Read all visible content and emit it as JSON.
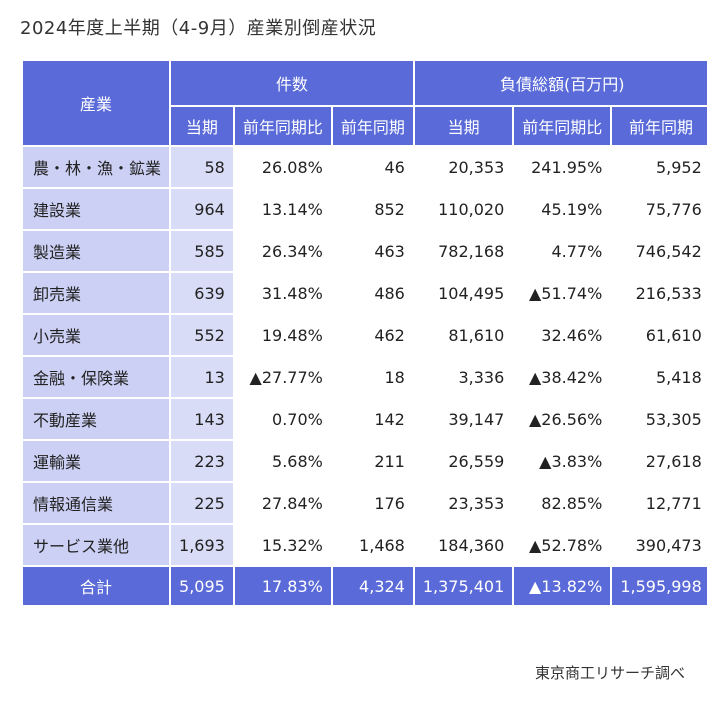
{
  "title": "2024年度上半期（4-9月）産業別倒産状況",
  "source": "東京商工リサーチ調べ",
  "colors": {
    "header": "#5a6ad8",
    "label_cell": "#ccd0f4",
    "current_cell": "#d9dcf6"
  },
  "chart_data": {
    "type": "table",
    "title": "2024年度上半期（4-9月）産業別倒産状況",
    "row_header": "産業",
    "groups": [
      {
        "name": "件数",
        "columns": [
          "当期",
          "前年同期比",
          "前年同期"
        ]
      },
      {
        "name": "負債総額(百万円)",
        "columns": [
          "当期",
          "前年同期比",
          "前年同期"
        ]
      }
    ],
    "rows": [
      {
        "industry": "農・林・漁・鉱業",
        "count_current": "58",
        "count_yoy": "26.08%",
        "count_prev": "46",
        "debt_current": "20,353",
        "debt_yoy": "241.95%",
        "debt_prev": "5,952"
      },
      {
        "industry": "建設業",
        "count_current": "964",
        "count_yoy": "13.14%",
        "count_prev": "852",
        "debt_current": "110,020",
        "debt_yoy": "45.19%",
        "debt_prev": "75,776"
      },
      {
        "industry": "製造業",
        "count_current": "585",
        "count_yoy": "26.34%",
        "count_prev": "463",
        "debt_current": "782,168",
        "debt_yoy": "4.77%",
        "debt_prev": "746,542"
      },
      {
        "industry": "卸売業",
        "count_current": "639",
        "count_yoy": "31.48%",
        "count_prev": "486",
        "debt_current": "104,495",
        "debt_yoy": "▲51.74%",
        "debt_prev": "216,533"
      },
      {
        "industry": "小売業",
        "count_current": "552",
        "count_yoy": "19.48%",
        "count_prev": "462",
        "debt_current": "81,610",
        "debt_yoy": "32.46%",
        "debt_prev": "61,610"
      },
      {
        "industry": "金融・保険業",
        "count_current": "13",
        "count_yoy": "▲27.77%",
        "count_prev": "18",
        "debt_current": "3,336",
        "debt_yoy": "▲38.42%",
        "debt_prev": "5,418"
      },
      {
        "industry": "不動産業",
        "count_current": "143",
        "count_yoy": "0.70%",
        "count_prev": "142",
        "debt_current": "39,147",
        "debt_yoy": "▲26.56%",
        "debt_prev": "53,305"
      },
      {
        "industry": "運輸業",
        "count_current": "223",
        "count_yoy": "5.68%",
        "count_prev": "211",
        "debt_current": "26,559",
        "debt_yoy": "▲3.83%",
        "debt_prev": "27,618"
      },
      {
        "industry": "情報通信業",
        "count_current": "225",
        "count_yoy": "27.84%",
        "count_prev": "176",
        "debt_current": "23,353",
        "debt_yoy": "82.85%",
        "debt_prev": "12,771"
      },
      {
        "industry": "サービス業他",
        "count_current": "1,693",
        "count_yoy": "15.32%",
        "count_prev": "1,468",
        "debt_current": "184,360",
        "debt_yoy": "▲52.78%",
        "debt_prev": "390,473"
      }
    ],
    "total": {
      "industry": "合計",
      "count_current": "5,095",
      "count_yoy": "17.83%",
      "count_prev": "4,324",
      "debt_current": "1,375,401",
      "debt_yoy": "▲13.82%",
      "debt_prev": "1,595,998"
    }
  }
}
